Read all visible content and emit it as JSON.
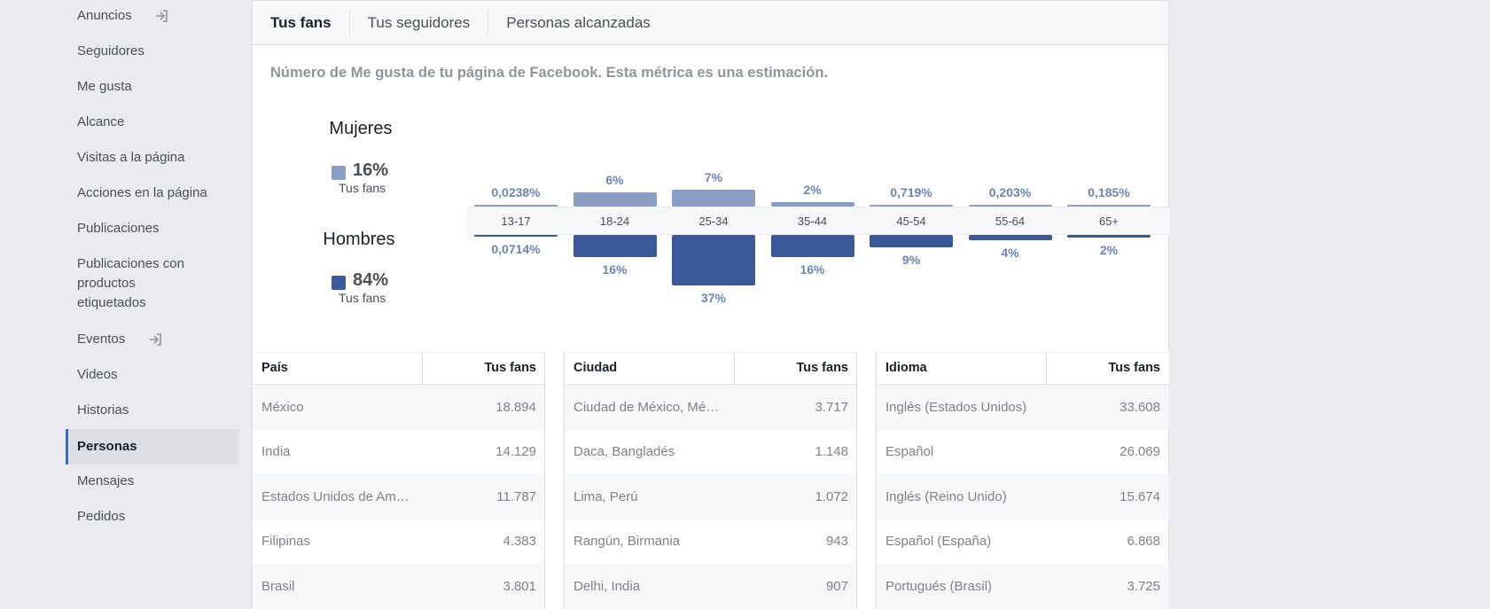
{
  "sidebar": {
    "items": [
      {
        "label": "Anuncios",
        "icon": "login-arrow-icon"
      },
      {
        "label": "Seguidores"
      },
      {
        "label": "Me gusta"
      },
      {
        "label": "Alcance"
      },
      {
        "label": "Visitas a la página"
      },
      {
        "label": "Acciones en la página"
      },
      {
        "label": "Publicaciones"
      },
      {
        "label": "Publicaciones con productos etiquetados"
      },
      {
        "label": "Eventos",
        "icon": "login-arrow-icon"
      },
      {
        "label": "Videos"
      },
      {
        "label": "Historias"
      },
      {
        "label": "Personas",
        "active": true
      },
      {
        "label": "Mensajes"
      },
      {
        "label": "Pedidos"
      }
    ]
  },
  "tabs": [
    "Tus fans",
    "Tus seguidores",
    "Personas alcanzadas"
  ],
  "subtitle": "Número de Me gusta de tu página de Facebook. Esta métrica es una estimación.",
  "legend": {
    "women": {
      "title": "Mujeres",
      "pct": "16%",
      "sub": "Tus fans",
      "color": "#8b9dc3"
    },
    "men": {
      "title": "Hombres",
      "pct": "84%",
      "sub": "Tus fans",
      "color": "#3b5998"
    }
  },
  "chart_data": {
    "type": "bar",
    "categories": [
      "13-17",
      "18-24",
      "25-34",
      "35-44",
      "45-54",
      "55-64",
      "65+"
    ],
    "series": [
      {
        "name": "Mujeres",
        "values": [
          0.0238,
          6,
          7,
          2,
          0.719,
          0.203,
          0.185
        ],
        "labels": [
          "0,0238%",
          "6%",
          "7%",
          "2%",
          "0,719%",
          "0,203%",
          "0,185%"
        ],
        "color": "#8b9dc3"
      },
      {
        "name": "Hombres",
        "values": [
          0.0714,
          16,
          37,
          16,
          9,
          4,
          2
        ],
        "labels": [
          "0,0714%",
          "16%",
          "37%",
          "16%",
          "9%",
          "4%",
          "2%"
        ],
        "color": "#3b5998"
      }
    ]
  },
  "tables": [
    {
      "col1": "País",
      "col2": "Tus fans",
      "rows": [
        [
          "México",
          "18.894"
        ],
        [
          "India",
          "14.129"
        ],
        [
          "Estados Unidos de Am…",
          "11.787"
        ],
        [
          "Filipinas",
          "4.383"
        ],
        [
          "Brasil",
          "3.801"
        ]
      ]
    },
    {
      "col1": "Ciudad",
      "col2": "Tus fans",
      "rows": [
        [
          "Ciudad de México, Mé…",
          "3.717"
        ],
        [
          "Daca, Bangladés",
          "1.148"
        ],
        [
          "Lima, Perú",
          "1.072"
        ],
        [
          "Rangún, Birmania",
          "943"
        ],
        [
          "Delhi, India",
          "907"
        ]
      ]
    },
    {
      "col1": "Idioma",
      "col2": "Tus fans",
      "rows": [
        [
          "Inglés (Estados Unidos)",
          "33.608"
        ],
        [
          "Español",
          "26.069"
        ],
        [
          "Inglés (Reino Unido)",
          "15.674"
        ],
        [
          "Español (España)",
          "6.868"
        ],
        [
          "Portugués (Brasil)",
          "3.725"
        ]
      ]
    }
  ]
}
